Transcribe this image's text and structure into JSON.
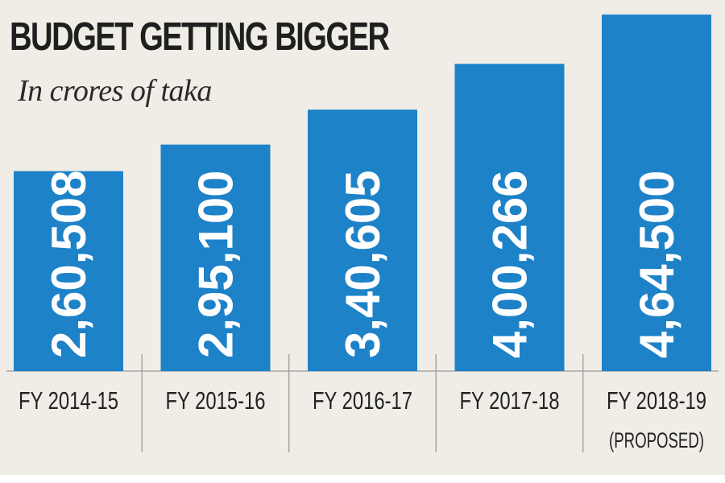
{
  "chart_data": {
    "type": "bar",
    "title": "BUDGET GETTING BIGGER",
    "subtitle": "In crores of taka",
    "categories": [
      "FY 2014-15",
      "FY 2015-16",
      "FY 2016-17",
      "FY 2017-18",
      "FY 2018-19"
    ],
    "category_notes": [
      "",
      "",
      "",
      "",
      "(PROPOSED)"
    ],
    "values": [
      260508,
      295100,
      340605,
      400266,
      464500
    ],
    "value_labels": [
      "2,60,508",
      "2,95,100",
      "3,40,605",
      "4,00,266",
      "4,64,500"
    ],
    "ylim": [
      0,
      480000
    ],
    "xlabel": "",
    "ylabel": "",
    "grid": false,
    "bar_color": "#1d82c8",
    "label_color": "#ffffff"
  }
}
